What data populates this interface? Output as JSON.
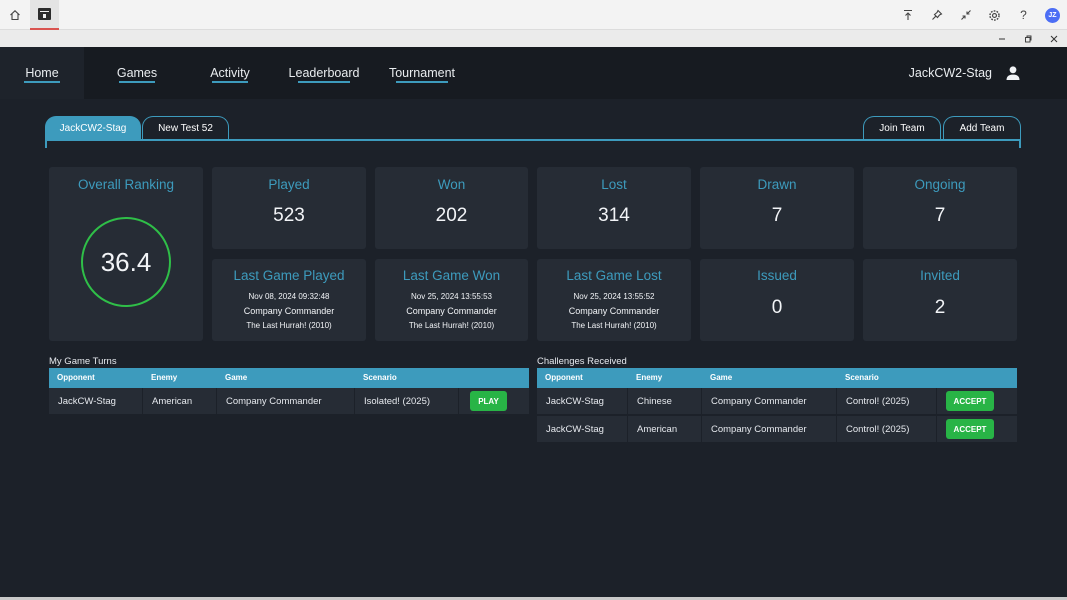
{
  "system_bar": {
    "icons": [
      "home-icon",
      "app-icon",
      "upload-icon",
      "pin-icon",
      "collapse-icon",
      "gear-icon",
      "help-icon"
    ],
    "help_label": "?",
    "avatar_initials": "JZ"
  },
  "nav": {
    "items": [
      {
        "label": "Home"
      },
      {
        "label": "Games"
      },
      {
        "label": "Activity"
      },
      {
        "label": "Leaderboard"
      },
      {
        "label": "Tournament"
      }
    ],
    "username": "JackCW2-Stag"
  },
  "tabs": {
    "teams": [
      "JackCW2-Stag",
      "New Test 52"
    ],
    "join_label": "Join Team",
    "add_label": "Add Team"
  },
  "stats": {
    "overall_ranking": {
      "title": "Overall Ranking",
      "value": "36.4"
    },
    "played": {
      "title": "Played",
      "value": "523"
    },
    "won": {
      "title": "Won",
      "value": "202"
    },
    "lost": {
      "title": "Lost",
      "value": "314"
    },
    "drawn": {
      "title": "Drawn",
      "value": "7"
    },
    "ongoing": {
      "title": "Ongoing",
      "value": "7"
    },
    "last_played": {
      "title": "Last Game Played",
      "date": "Nov 08, 2024 09:32:48",
      "game": "Company Commander",
      "scenario": "The Last Hurrah! (2010)"
    },
    "last_won": {
      "title": "Last Game Won",
      "date": "Nov 25, 2024 13:55:53",
      "game": "Company Commander",
      "scenario": "The Last Hurrah! (2010)"
    },
    "last_lost": {
      "title": "Last Game Lost",
      "date": "Nov 25, 2024 13:55:52",
      "game": "Company Commander",
      "scenario": "The Last Hurrah! (2010)"
    },
    "issued": {
      "title": "Issued",
      "value": "0"
    },
    "invited": {
      "title": "Invited",
      "value": "2"
    }
  },
  "my_turns": {
    "title": "My Game Turns",
    "headers": [
      "Opponent",
      "Enemy",
      "Game",
      "Scenario"
    ],
    "rows": [
      {
        "opponent": "JackCW-Stag",
        "enemy": "American",
        "game": "Company Commander",
        "scenario": "Isolated! (2025)",
        "action": "PLAY"
      }
    ]
  },
  "challenges": {
    "title": "Challenges Received",
    "headers": [
      "Opponent",
      "Enemy",
      "Game",
      "Scenario"
    ],
    "rows": [
      {
        "opponent": "JackCW-Stag",
        "enemy": "Chinese",
        "game": "Company Commander",
        "scenario": "Control! (2025)",
        "action": "ACCEPT"
      },
      {
        "opponent": "JackCW-Stag",
        "enemy": "American",
        "game": "Company Commander",
        "scenario": "Control! (2025)",
        "action": "ACCEPT"
      }
    ]
  },
  "colors": {
    "accent": "#3d9bbd",
    "background": "#1c2129",
    "card": "#262c35",
    "success": "#28b446"
  }
}
